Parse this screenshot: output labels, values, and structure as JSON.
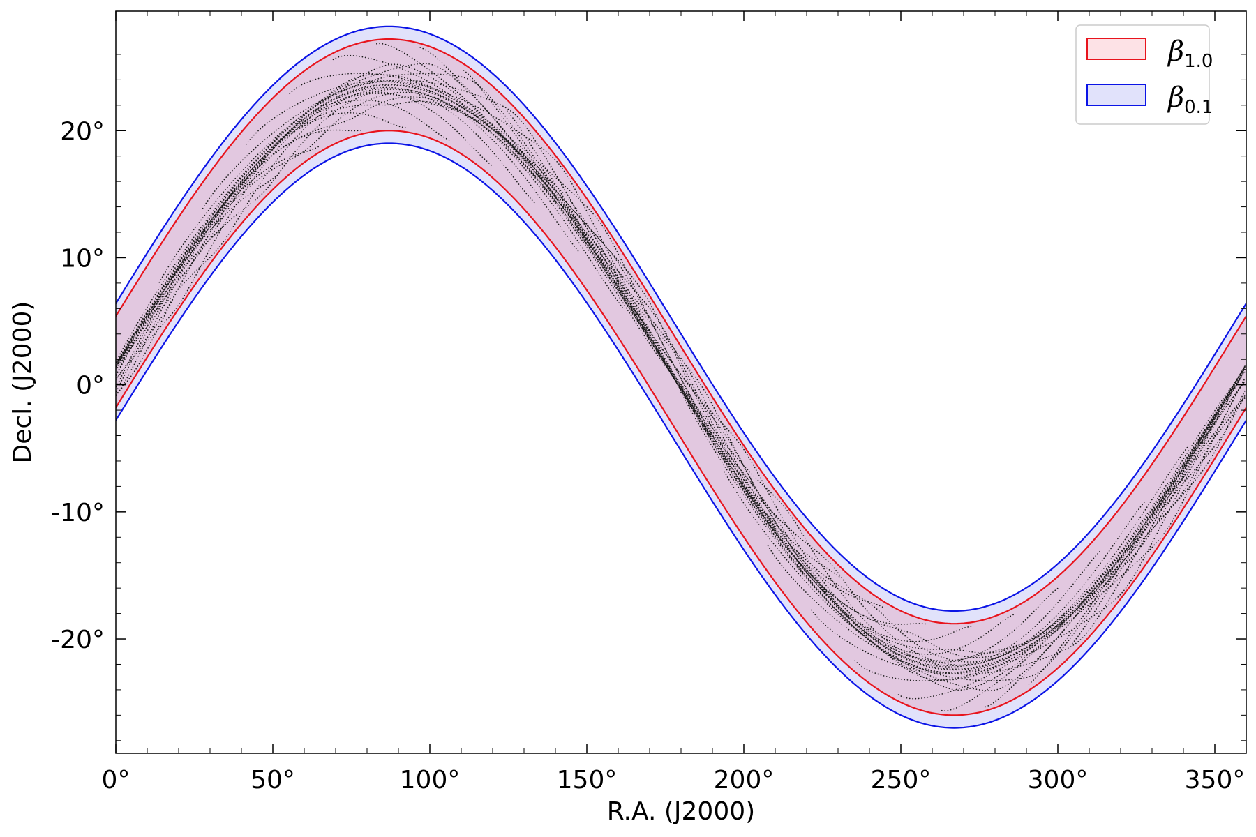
{
  "chart_data": {
    "type": "area",
    "title": "",
    "xlabel": "R.A. (J2000)",
    "ylabel": "Decl. (J2000)",
    "xlim": [
      0,
      360
    ],
    "ylim": [
      -29,
      29.4
    ],
    "x_ticks": [
      {
        "value": 0,
        "label": "0°"
      },
      {
        "value": 50,
        "label": "50°"
      },
      {
        "value": 100,
        "label": "100°"
      },
      {
        "value": 150,
        "label": "150°"
      },
      {
        "value": 200,
        "label": "200°"
      },
      {
        "value": 250,
        "label": "250°"
      },
      {
        "value": 300,
        "label": "300°"
      },
      {
        "value": 350,
        "label": "350°"
      }
    ],
    "y_ticks": [
      {
        "value": 20,
        "label": "20°"
      },
      {
        "value": 10,
        "label": "10°"
      },
      {
        "value": 0,
        "label": "0°"
      },
      {
        "value": -10,
        "label": "-10°"
      },
      {
        "value": -20,
        "label": "-20°"
      }
    ],
    "grid": false,
    "legend_position": "top-right",
    "series": [
      {
        "name": "β_{1.0}",
        "symbol": "β",
        "subscript": "1.0",
        "edge_color": "#e8141d",
        "fill_color": "#fde2e6",
        "band": {
          "center_amplitude_deg": 23.0,
          "center_peak_ra_deg": 87,
          "offset_deg": 0.6,
          "half_width_deg": 3.6
        }
      },
      {
        "name": "β_{0.1}",
        "symbol": "β",
        "subscript": "0.1",
        "edge_color": "#0b14e6",
        "fill_color": "#e1e2fb",
        "band": {
          "center_amplitude_deg": 23.0,
          "center_peak_ra_deg": 87,
          "offset_deg": 0.6,
          "half_width_deg": 4.6
        }
      }
    ],
    "trajectories": {
      "description_of_marks": "black dotted sky tracks with retrograde loops, confined inside the β1.0 band",
      "dot_color": "#1a1a1a",
      "track_count": 26,
      "loops_per_track": 3
    }
  }
}
